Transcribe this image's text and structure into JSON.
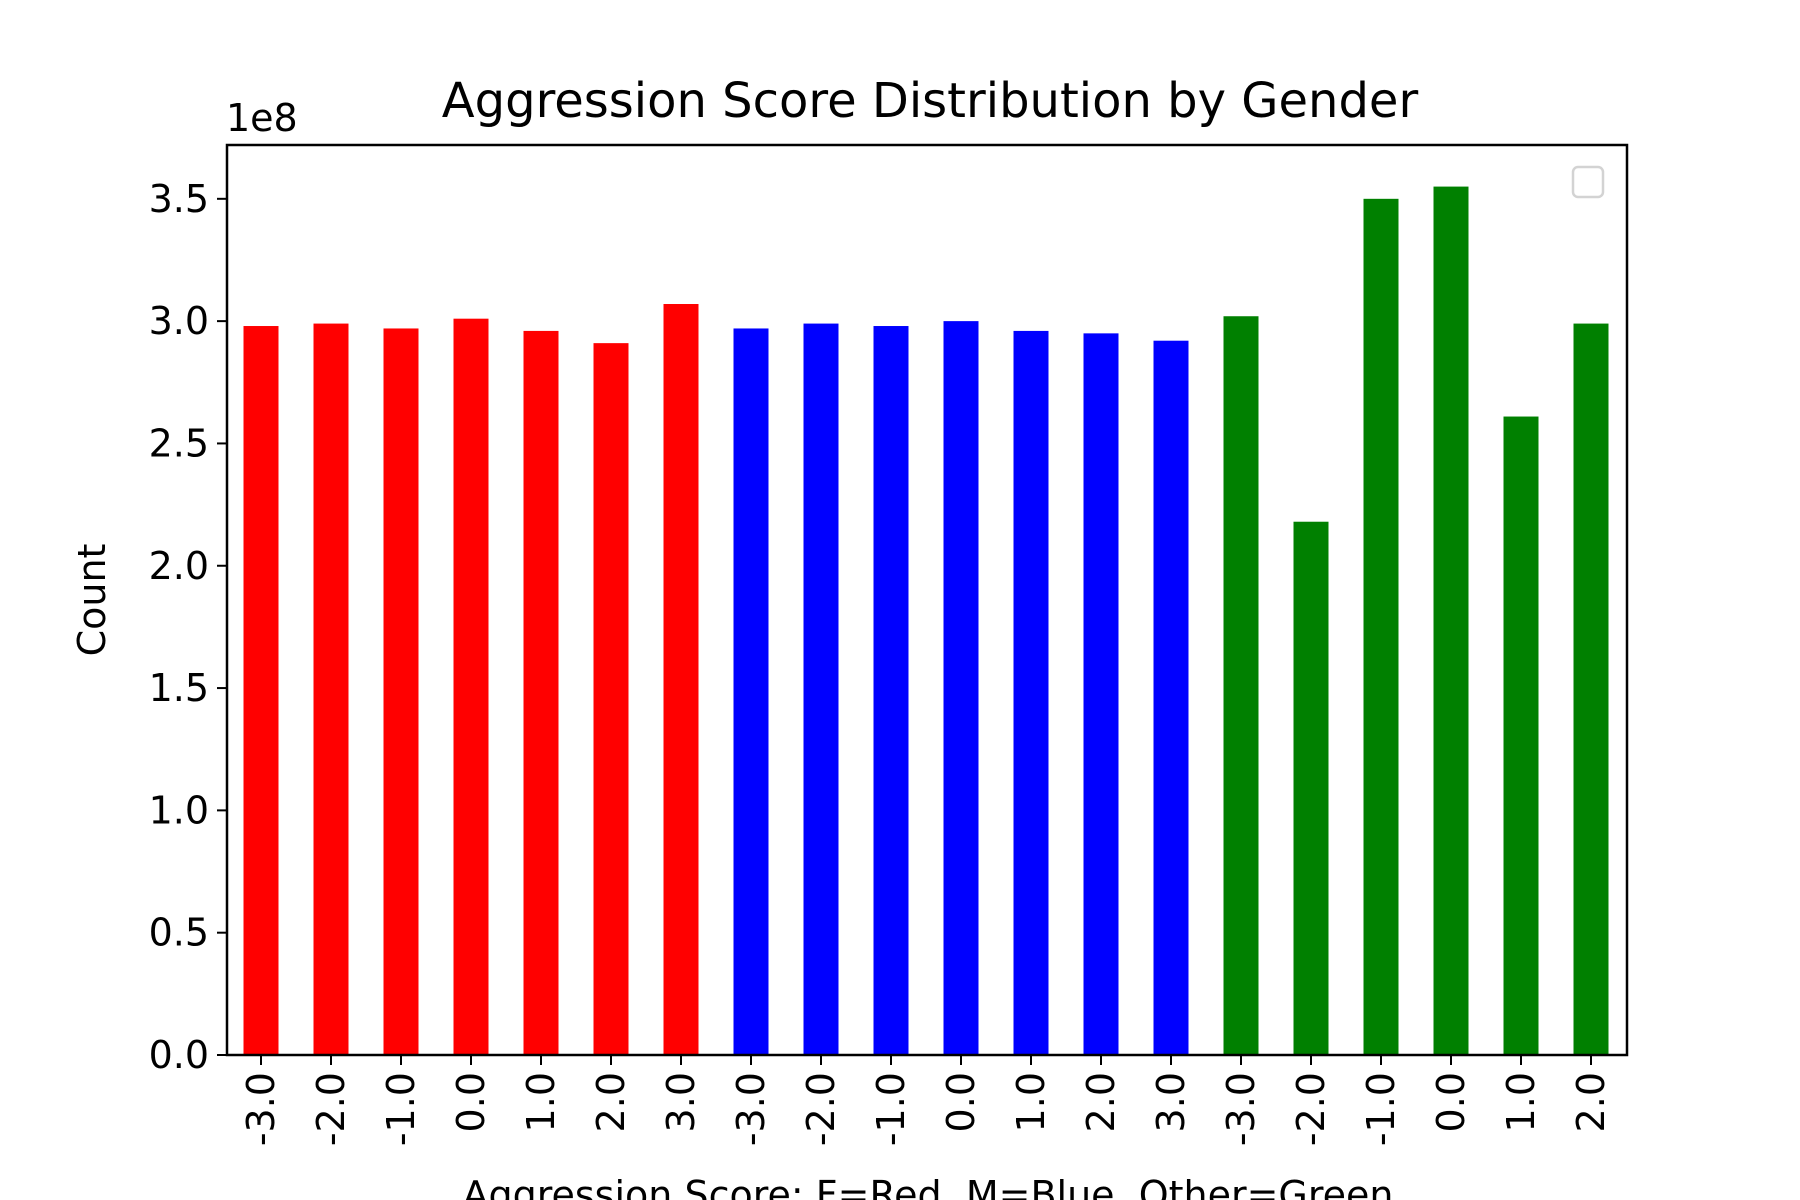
{
  "chart_data": {
    "type": "bar",
    "title": "Aggression Score Distribution by Gender",
    "xlabel": "Aggression Score: F=Red, M=Blue, Other=Green",
    "ylabel": "Count",
    "y_offset_text": "1e8",
    "ylim": [
      0,
      3.72
    ],
    "y_ticks": [
      "0.0",
      "0.5",
      "1.0",
      "1.5",
      "2.0",
      "2.5",
      "3.0",
      "3.5"
    ],
    "grid": false,
    "legend": "top-right (empty)",
    "categories": [
      "-3.0",
      "-2.0",
      "-1.0",
      "0.0",
      "1.0",
      "2.0",
      "3.0",
      "-3.0",
      "-2.0",
      "-1.0",
      "0.0",
      "1.0",
      "2.0",
      "3.0",
      "-3.0",
      "-2.0",
      "-1.0",
      "0.0",
      "1.0",
      "2.0"
    ],
    "values": [
      2.98,
      2.99,
      2.97,
      3.01,
      2.96,
      2.91,
      3.07,
      2.97,
      2.99,
      2.98,
      3.0,
      2.96,
      2.95,
      2.92,
      3.02,
      2.18,
      3.5,
      3.55,
      2.61,
      2.99
    ],
    "bar_colors": [
      "#ff0000",
      "#ff0000",
      "#ff0000",
      "#ff0000",
      "#ff0000",
      "#ff0000",
      "#ff0000",
      "#0000ff",
      "#0000ff",
      "#0000ff",
      "#0000ff",
      "#0000ff",
      "#0000ff",
      "#0000ff",
      "#008000",
      "#008000",
      "#008000",
      "#008000",
      "#008000",
      "#008000"
    ]
  }
}
